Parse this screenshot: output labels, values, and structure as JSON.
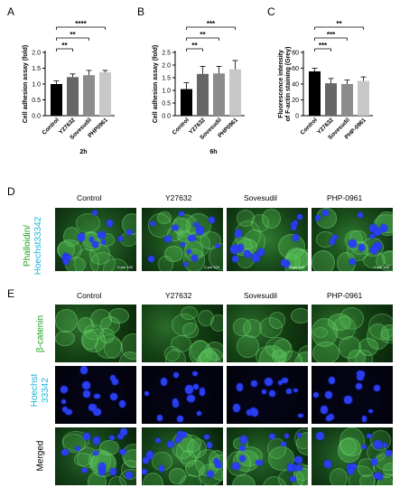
{
  "panel_letters": [
    "A",
    "B",
    "C",
    "D",
    "E"
  ],
  "chart_data": [
    {
      "type": "bar",
      "ylabel": "Cell adhesion assay (fold)",
      "xlabel": "2h",
      "categories": [
        "Control",
        "Y27632",
        "Sovesudil",
        "PHP0961"
      ],
      "values": [
        1.0,
        1.22,
        1.28,
        1.37
      ],
      "errors": [
        0.1,
        0.1,
        0.15,
        0.06
      ],
      "ylim": [
        0,
        2.0
      ],
      "yticks": [
        "0.0",
        "0.5",
        "1.0",
        "1.5",
        "2.0"
      ],
      "bar_colors": [
        "#000000",
        "#666666",
        "#8c8c8c",
        "#c8c8c8"
      ],
      "significance": [
        {
          "label": "**",
          "from": 0,
          "to": 1
        },
        {
          "label": "**",
          "from": 0,
          "to": 2
        },
        {
          "label": "****",
          "from": 0,
          "to": 3
        }
      ]
    },
    {
      "type": "bar",
      "ylabel": "Cell adhesion assay (fold)",
      "xlabel": "6h",
      "categories": [
        "Control",
        "Y27632",
        "Sovesudil",
        "PHP0961"
      ],
      "values": [
        1.05,
        1.65,
        1.67,
        1.83
      ],
      "errors": [
        0.25,
        0.3,
        0.28,
        0.35
      ],
      "ylim": [
        0,
        2.5
      ],
      "yticks": [
        "0.0",
        "0.5",
        "1.0",
        "1.5",
        "2.0",
        "2.5"
      ],
      "bar_colors": [
        "#000000",
        "#666666",
        "#8c8c8c",
        "#c8c8c8"
      ],
      "significance": [
        {
          "label": "**",
          "from": 0,
          "to": 1
        },
        {
          "label": "**",
          "from": 0,
          "to": 2
        },
        {
          "label": "***",
          "from": 0,
          "to": 3
        }
      ]
    },
    {
      "type": "bar",
      "ylabel": "Fluorescence intensity of F-actin staining (Grey)",
      "xlabel": "",
      "categories": [
        "Control",
        "Y27632",
        "Sovesudil",
        "PHP-0961"
      ],
      "values": [
        56,
        41,
        40,
        44
      ],
      "errors": [
        4,
        6,
        5,
        5
      ],
      "ylim": [
        0,
        80
      ],
      "yticks": [
        "0",
        "20",
        "40",
        "60",
        "80"
      ],
      "bar_colors": [
        "#000000",
        "#666666",
        "#8c8c8c",
        "#c8c8c8"
      ],
      "significance": [
        {
          "label": "***",
          "from": 0,
          "to": 1
        },
        {
          "label": "***",
          "from": 0,
          "to": 2
        },
        {
          "label": "**",
          "from": 0,
          "to": 3
        }
      ]
    }
  ],
  "grid_d": {
    "columns": [
      "Control",
      "Y27632",
      "Sovesudil",
      "PHP-0961"
    ],
    "row_label": "Phalloidin/ Hoechst33342",
    "row_label_parts": [
      "Phalloidin/",
      "Hoechst33342"
    ],
    "scale_text": "0   μm   100"
  },
  "grid_e": {
    "columns": [
      "Control",
      "Y27632",
      "Sovesudil",
      "PHP-0961"
    ],
    "rows": [
      "β-catenin",
      "Hoechst 33342",
      "Merged"
    ],
    "row_label_parts": [
      [
        "β-catenin"
      ],
      [
        "Hoechst",
        "33342"
      ],
      [
        "Merged"
      ]
    ]
  },
  "colors": {
    "phalloidin_label": "#1ca01c",
    "hoechst_label": "#1ab3d8",
    "catenin_label": "#1ca01c",
    "merged_label": "#000000"
  }
}
